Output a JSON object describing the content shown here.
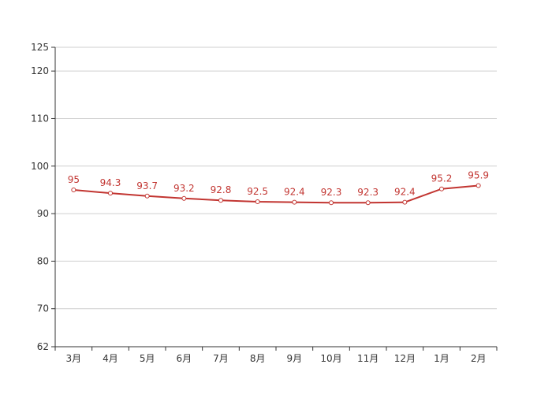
{
  "chart_data": {
    "type": "line",
    "categories": [
      "3月",
      "4月",
      "5月",
      "6月",
      "7月",
      "8月",
      "9月",
      "10月",
      "11月",
      "12月",
      "1月",
      "2月"
    ],
    "series": [
      {
        "values": [
          95,
          94.3,
          93.7,
          93.2,
          92.8,
          92.5,
          92.4,
          92.3,
          92.3,
          92.4,
          95.2,
          95.9
        ],
        "labels": [
          "95",
          "94.3",
          "93.7",
          "93.2",
          "92.8",
          "92.5",
          "92.4",
          "92.3",
          "92.3",
          "92.4",
          "95.2",
          "95.9"
        ],
        "color": "#c23531"
      }
    ],
    "ylim": [
      62,
      125
    ],
    "yticks": [
      62,
      70,
      80,
      90,
      100,
      110,
      120,
      125
    ],
    "ytick_labels": [
      "62",
      "70",
      "80",
      "90",
      "100",
      "110",
      "120",
      "125"
    ],
    "grid": true,
    "title": "",
    "xlabel": "",
    "ylabel": ""
  }
}
